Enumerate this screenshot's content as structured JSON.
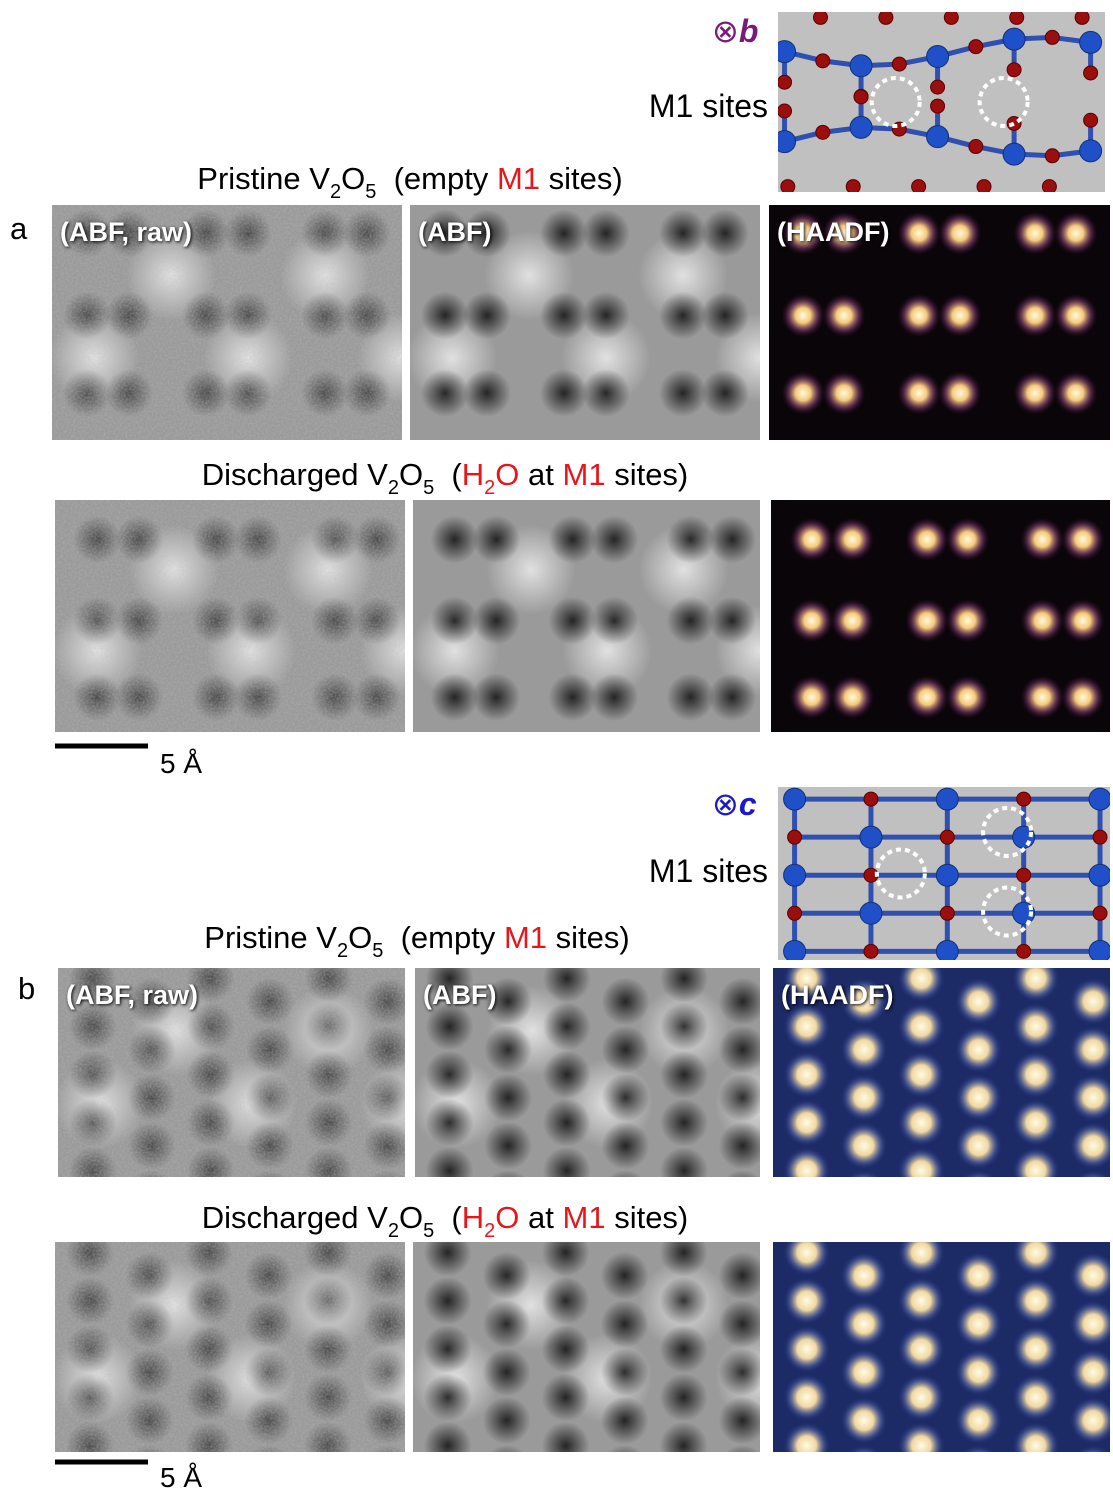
{
  "panels": [
    {
      "label": "a",
      "axis": {
        "symbol": "⊗",
        "letter": "b",
        "color": "#7a1a7a"
      },
      "inset_label": "M1 sites",
      "rows": [
        {
          "caption": [
            {
              "text": "Pristine V"
            },
            {
              "text": "2",
              "style": "sub"
            },
            {
              "text": "O"
            },
            {
              "text": "5",
              "style": "sub"
            },
            {
              "text": "  (empty "
            },
            {
              "text": "M1",
              "style": "red"
            },
            {
              "text": " sites)"
            }
          ],
          "images": [
            {
              "label": "(ABF, raw)",
              "colormap": "gray-raw"
            },
            {
              "label": "(ABF)",
              "colormap": "gray"
            },
            {
              "label": "(HAADF)",
              "colormap": "magma"
            }
          ]
        },
        {
          "caption": [
            {
              "text": "Discharged V"
            },
            {
              "text": "2",
              "style": "sub"
            },
            {
              "text": "O"
            },
            {
              "text": "5",
              "style": "sub"
            },
            {
              "text": "  ("
            },
            {
              "text": "H",
              "style": "red"
            },
            {
              "text": "2",
              "style": "red-sub"
            },
            {
              "text": "O",
              "style": "red"
            },
            {
              "text": " at "
            },
            {
              "text": "M1",
              "style": "red"
            },
            {
              "text": " sites)"
            }
          ],
          "images": [
            {
              "colormap": "gray-raw"
            },
            {
              "colormap": "gray"
            },
            {
              "colormap": "magma"
            }
          ]
        }
      ],
      "scale_bar": "5 Å"
    },
    {
      "label": "b",
      "axis": {
        "symbol": "⊗",
        "letter": "c",
        "color": "#1a1acc"
      },
      "inset_label": "M1 sites",
      "rows": [
        {
          "caption": [
            {
              "text": "Pristine V"
            },
            {
              "text": "2",
              "style": "sub"
            },
            {
              "text": "O"
            },
            {
              "text": "5",
              "style": "sub"
            },
            {
              "text": "  (empty "
            },
            {
              "text": "M1",
              "style": "red"
            },
            {
              "text": " sites)"
            }
          ],
          "images": [
            {
              "label": "(ABF, raw)",
              "colormap": "gray-raw"
            },
            {
              "label": "(ABF)",
              "colormap": "gray"
            },
            {
              "label": "(HAADF)",
              "colormap": "blue"
            }
          ]
        },
        {
          "caption": [
            {
              "text": "Discharged V"
            },
            {
              "text": "2",
              "style": "sub"
            },
            {
              "text": "O"
            },
            {
              "text": "5",
              "style": "sub"
            },
            {
              "text": "  ("
            },
            {
              "text": "H",
              "style": "red"
            },
            {
              "text": "2",
              "style": "red-sub"
            },
            {
              "text": "O",
              "style": "red"
            },
            {
              "text": " at "
            },
            {
              "text": "M1",
              "style": "red"
            },
            {
              "text": " sites)"
            }
          ],
          "images": [
            {
              "colormap": "gray-raw"
            },
            {
              "colormap": "gray"
            },
            {
              "colormap": "blue"
            }
          ]
        }
      ],
      "scale_bar": "5 Å"
    }
  ]
}
